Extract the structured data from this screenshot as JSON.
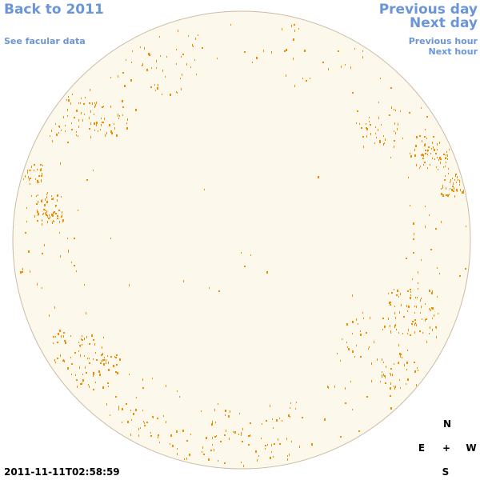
{
  "nav": {
    "back_label": "Back to 2011",
    "facular_label": "See facular data",
    "previous_day_label": "Previous day",
    "next_day_label": "Next day",
    "previous_hour_label": "Previous hour",
    "next_hour_label": "Next hour"
  },
  "compass": {
    "north": "N",
    "east": "E",
    "center": "+",
    "west": "W",
    "south": "S"
  },
  "timestamp": "2011-11-11T02:58:59",
  "colors": {
    "link": "#6a95d8",
    "disk_fill": "#fdf8ec",
    "disk_edge": "#cbbba3",
    "facula": "#f28c00"
  }
}
